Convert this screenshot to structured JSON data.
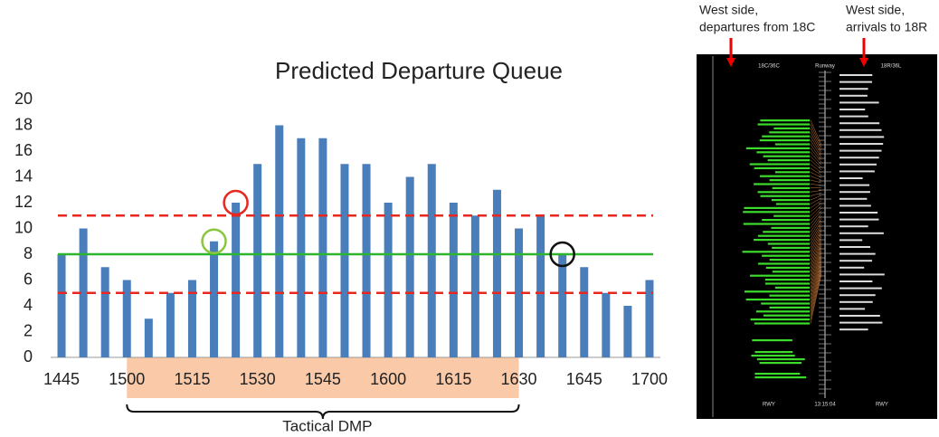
{
  "chart_data": {
    "type": "bar",
    "title": "Predicted Departure Queue",
    "categories": [
      "1445",
      null,
      null,
      "1500",
      null,
      null,
      "1515",
      null,
      null,
      "1530",
      null,
      null,
      "1545",
      null,
      null,
      "1600",
      null,
      null,
      "1615",
      null,
      null,
      "1630",
      null,
      null,
      "1645",
      null,
      null,
      "1700"
    ],
    "values": [
      8,
      10,
      7,
      6,
      3,
      5,
      6,
      9,
      12,
      15,
      18,
      17,
      17,
      15,
      15,
      12,
      14,
      15,
      12,
      11,
      13,
      10,
      11,
      8,
      7,
      5,
      4,
      6
    ],
    "color": "#4a7ebb",
    "ylim": [
      0,
      20
    ],
    "yticks": [
      0,
      2,
      4,
      6,
      8,
      10,
      12,
      14,
      16,
      18,
      20
    ],
    "grid": false,
    "reference_lines": [
      {
        "value": 11,
        "color": "#e8271f",
        "dashed": true
      },
      {
        "value": 8,
        "color": "#2db52d",
        "dashed": false
      },
      {
        "value": 5,
        "color": "#e8271f",
        "dashed": true
      }
    ],
    "highlights": [
      {
        "index": 7,
        "color": "#8cc63f"
      },
      {
        "index": 8,
        "color": "#e8271f"
      },
      {
        "index": 23,
        "color": "#111111"
      }
    ],
    "span": {
      "start": 3,
      "end": 21,
      "color": "#f9c9a8",
      "label": "Tactical DMP"
    }
  },
  "display": {
    "annotations": [
      {
        "lines": [
          "West side,",
          "departures from 18C"
        ]
      },
      {
        "lines": [
          "West side,",
          "arrivals to 18R"
        ]
      }
    ],
    "header": [
      "18C/36C",
      "Runway",
      "18R/36L"
    ],
    "footer": [
      "RWY",
      "13:15:04",
      "RWY"
    ]
  }
}
